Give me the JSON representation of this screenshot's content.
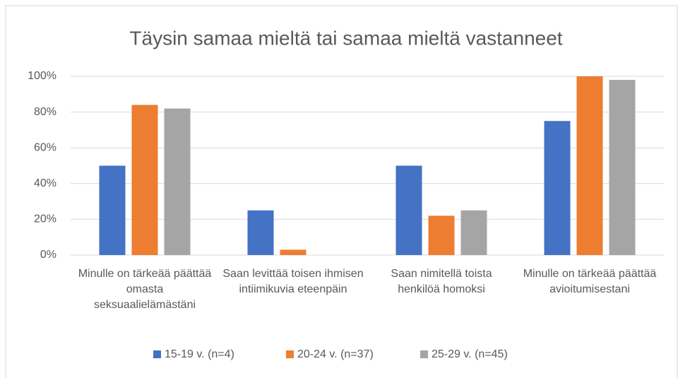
{
  "chart_data": {
    "type": "bar",
    "title": "Täysin samaa mieltä tai samaa mieltä vastanneet",
    "categories": [
      "Minulle on tärkeää päättää omasta seksuaalielämästäni",
      "Saan levittää toisen ihmisen intiimikuvia eteenpäin",
      "Saan nimitellä toista henkilöä homoksi",
      "Minulle on tärkeää päättää avioitumisestani"
    ],
    "series": [
      {
        "name": "15-19 v. (n=4)",
        "color": "#4472c4",
        "values": [
          50,
          25,
          50,
          75
        ]
      },
      {
        "name": "20-24 v. (n=37)",
        "color": "#ed7d31",
        "values": [
          84,
          3,
          22,
          100
        ]
      },
      {
        "name": "25-29 v. (n=45)",
        "color": "#a5a5a5",
        "values": [
          82,
          0,
          25,
          98
        ]
      }
    ],
    "ylim": [
      0,
      100
    ],
    "yticks": [
      {
        "value": 0,
        "label": "0%"
      },
      {
        "value": 20,
        "label": "20%"
      },
      {
        "value": 40,
        "label": "40%"
      },
      {
        "value": 60,
        "label": "60%"
      },
      {
        "value": 80,
        "label": "80%"
      },
      {
        "value": 100,
        "label": "100%"
      }
    ],
    "grid": true,
    "legend": "bottom"
  }
}
